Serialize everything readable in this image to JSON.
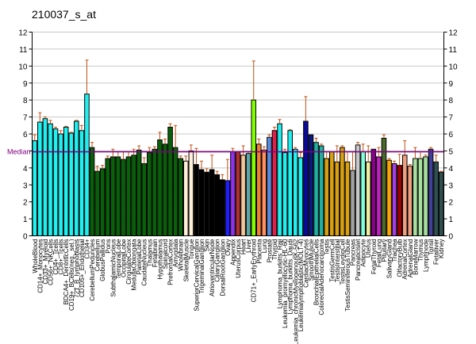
{
  "chart_data": {
    "type": "bar",
    "title": "210037_s_at",
    "xlabel": "",
    "ylabel": "",
    "ylim": [
      0,
      12
    ],
    "yticks": [
      0,
      1,
      2,
      3,
      4,
      5,
      6,
      7,
      8,
      9,
      10,
      11,
      12
    ],
    "grid": true,
    "median": {
      "label": "Median",
      "value": 4.95,
      "color": "#800080"
    },
    "error_color": "#c05010",
    "categories": [
      "WholeBlood",
      "CD14+_Monocytes",
      "CD33+_Myeloid",
      "CD56+_NKCells",
      "CD4+_Tcells",
      "CD8+_Tcells",
      "BDCA4+_DentriticCells",
      "CD19+_BCells(neg._sel.)",
      "721_B_lymphoblasts",
      "CD105+_Endothelial",
      "CD34+",
      "CerebellumPeduncles",
      "Cerebellum",
      "GlobusPallidus",
      "Pons",
      "SubthalamicNucleus",
      "TemporalLobe",
      "OccipitalLobe",
      "CingulateCortex",
      "MedullaOblongata",
      "ParietalLobe",
      "CaudateNucleus",
      "Thalamus",
      "Fetalbrain",
      "Hypothalamus",
      "Spinalcord",
      "PrefrontalCortex",
      "Amygdala",
      "Wholebrain",
      "SkeletalMuscle",
      "Tongue",
      "SuperiorCervicalGanglion",
      "TrigeminalGanglion",
      "Skin",
      "AtrioventricularNode",
      "CiliaryGanglion",
      "DorsalRootGanglion",
      "Ovary",
      "Appendix",
      "UterusCorpus",
      "Heart",
      "Liver",
      "CD71+_EarlyErythroid",
      "Placenta",
      "Lung",
      "Prostate",
      "Thyroid",
      "Lymphoma_burkitts_Raji",
      "Leukemia_promyelocytic-HL-60",
      "Lymphoma_burkitts_Daudi",
      "Leukemia_chronicMyelogenousK-562",
      "Leukemialymphoblastic(MOLT-4)",
      "CardiacMyocytes",
      "SmoothMuscle",
      "BronchialEpithelialCells",
      "ColorectalAdenocarcinoma",
      "Testis",
      "TestisGermCell",
      "TestisInterstitial",
      "TestisLeydigCell",
      "TestisSeminiferousTubule",
      "Pancreas",
      "PancreaticIslet",
      "Adipocyte",
      "Uterus",
      "FetalThyroid",
      "FetalLung",
      "Pituitary",
      "SalivaryGland",
      "Trachea",
      "OlfactoryBulb",
      "AdrenalCortex",
      "AdrenalGland",
      "BoneMarrow",
      "Thymus",
      "Lymphnode",
      "Tonsil",
      "Fetalliver",
      "Kidney"
    ],
    "values": [
      5.6,
      6.7,
      6.9,
      6.6,
      6.3,
      6.0,
      6.4,
      6.05,
      6.75,
      6.2,
      8.35,
      5.2,
      3.8,
      3.95,
      4.55,
      4.65,
      4.65,
      4.5,
      4.65,
      4.75,
      5.05,
      4.25,
      4.9,
      5.1,
      5.65,
      5.4,
      6.4,
      5.2,
      4.55,
      4.4,
      5.0,
      4.2,
      3.9,
      3.75,
      3.9,
      3.6,
      3.3,
      3.25,
      4.95,
      4.95,
      4.75,
      4.85,
      8.0,
      5.4,
      5.05,
      5.8,
      6.2,
      6.6,
      4.9,
      6.2,
      5.1,
      4.6,
      6.75,
      5.95,
      5.5,
      5.3,
      4.55,
      4.95,
      4.35,
      5.2,
      4.35,
      3.85,
      5.35,
      4.95,
      4.35,
      5.1,
      4.65,
      5.75,
      4.45,
      4.25,
      4.15,
      4.75,
      4.1,
      4.55,
      4.55,
      4.65,
      5.1,
      4.35,
      3.75
    ],
    "errors": [
      0.35,
      0.55,
      0.1,
      0.2,
      0.1,
      0.2,
      0.05,
      0.05,
      0.05,
      0.3,
      2.0,
      0.3,
      0.3,
      0.2,
      0.15,
      0.45,
      0.3,
      0.45,
      0.3,
      0.35,
      0.25,
      0.35,
      0.3,
      0.15,
      0.45,
      0.3,
      0.2,
      1.3,
      0.15,
      0.3,
      0.35,
      0.95,
      0.5,
      0.2,
      0.85,
      0.2,
      0.3,
      1.25,
      0.2,
      0.0,
      0.55,
      0.1,
      2.3,
      0.3,
      0.2,
      0.15,
      0.2,
      0.25,
      0.2,
      0.05,
      0.1,
      0.3,
      1.45,
      0.0,
      0.25,
      0.1,
      0.4,
      0.0,
      0.95,
      0.1,
      0.6,
      1.1,
      0.15,
      0.45,
      0.95,
      0.0,
      0.55,
      0.2,
      0.1,
      0.15,
      0.65,
      0.85,
      0.1,
      0.65,
      0.4,
      0.1,
      0.1,
      0.4,
      0.05
    ],
    "colors": [
      "#20f0f0",
      "#20f0f0",
      "#20f0f0",
      "#20f0f0",
      "#20f0f0",
      "#20f0f0",
      "#20f0f0",
      "#20f0f0",
      "#20f0f0",
      "#20f0f0",
      "#20f0f0",
      "#0a600a",
      "#0a600a",
      "#0a600a",
      "#0a600a",
      "#0a600a",
      "#0a600a",
      "#0a600a",
      "#0a600a",
      "#0a600a",
      "#0a600a",
      "#0a600a",
      "#0a600a",
      "#0a600a",
      "#0a600a",
      "#0a600a",
      "#0a600a",
      "#0a600a",
      "#0a600a",
      "#fff0d8",
      "#fff0d8",
      "#000000",
      "#000000",
      "#000000",
      "#000000",
      "#000000",
      "#000000",
      "#2020ff",
      "#9030f0",
      "#b03030",
      "#f5c89a",
      "#60a8a8",
      "#80ff00",
      "#f08030",
      "#ff9060",
      "#5a8ce0",
      "#e0204a",
      "#20f0f0",
      "#20f0f0",
      "#20f0f0",
      "#20f0f0",
      "#20f0f0",
      "#0a0a9a",
      "#0a1a80",
      "#20b0a0",
      "#20b0a0",
      "#d8a010",
      "#d8a010",
      "#d8a010",
      "#d8a010",
      "#d8a010",
      "#a0a0a0",
      "#c8c8c8",
      "#80ffd8",
      "#f0f0a0",
      "#8b008b",
      "#c020c0",
      "#4a6a2a",
      "#ffa500",
      "#a040e0",
      "#a00000",
      "#f0a080",
      "#f0a080",
      "#a8e0a0",
      "#a8e0a0",
      "#a8e0a0",
      "#40409a",
      "#305050",
      "#305050"
    ]
  }
}
